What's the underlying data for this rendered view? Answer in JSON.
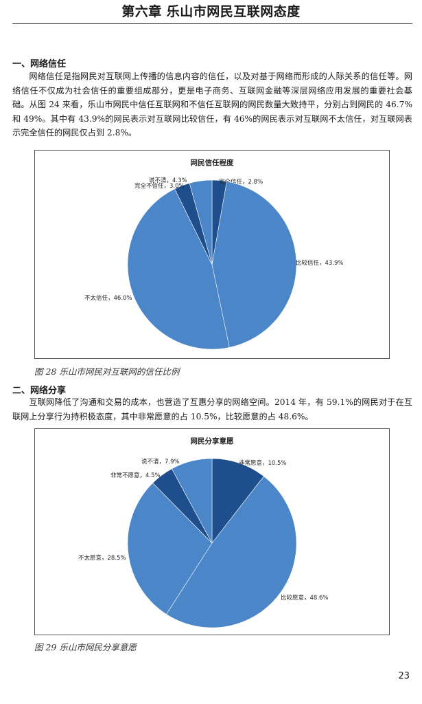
{
  "header": {
    "chapter_title": "第六章 乐山市网民互联网态度"
  },
  "section1": {
    "heading": "一、网络信任",
    "paragraph": "网络信任是指网民对互联网上传播的信息内容的信任，以及对基于网络而形成的人际关系的信任等。网络信任不仅成为社会信任的重要组成部分，更是电子商务、互联网金融等深层网络应用发展的重要社会基础。从图 24 来看，乐山市网民中信任互联网和不信任互联网的网民数量大致持平，分别占到网民的 46.7%和 49%。其中有 43.9%的网民表示对互联网比较信任，有 46%的网民表示对互联网不太信任，对互联网表示完全信任的网民仅占到 2.8%。",
    "caption": "图 28 乐山市网民对互联网的信任比例"
  },
  "section2": {
    "heading": "二、网络分享",
    "paragraph": "互联网降低了沟通和交易的成本，也营造了互惠分享的网络空间。2014 年，有 59.1%的网民对于在互联网上分享行为持积极态度，其中非常愿意的占 10.5%，比较愿意的占 48.6%。",
    "caption": "图 29 乐山市网民分享意愿"
  },
  "page_number": "23",
  "chart_data": [
    {
      "type": "pie",
      "title": "网民信任程度",
      "slices": [
        {
          "label": "完全信任，2.8%",
          "value": 2.8,
          "color": "#1f4e8c"
        },
        {
          "label": "比较信任，43.9%",
          "value": 43.9,
          "color": "#4a86c8"
        },
        {
          "label": "不太信任，46.0%",
          "value": 46.0,
          "color": "#4a86c8"
        },
        {
          "label": "完全不信任，3.0%",
          "value": 3.0,
          "color": "#1f4e8c"
        },
        {
          "label": "说不清，4.3%",
          "value": 4.3,
          "color": "#4a86c8"
        }
      ]
    },
    {
      "type": "pie",
      "title": "网民分享意愿",
      "slices": [
        {
          "label": "非常愿意，10.5%",
          "value": 10.5,
          "color": "#1f4e8c"
        },
        {
          "label": "比较愿意，48.6%",
          "value": 48.6,
          "color": "#4a86c8"
        },
        {
          "label": "不太愿意，28.5%",
          "value": 28.5,
          "color": "#4a86c8"
        },
        {
          "label": "非常不愿意，4.5%",
          "value": 4.5,
          "color": "#1f4e8c"
        },
        {
          "label": "说不清，7.9%",
          "value": 7.9,
          "color": "#4a86c8"
        }
      ]
    }
  ]
}
